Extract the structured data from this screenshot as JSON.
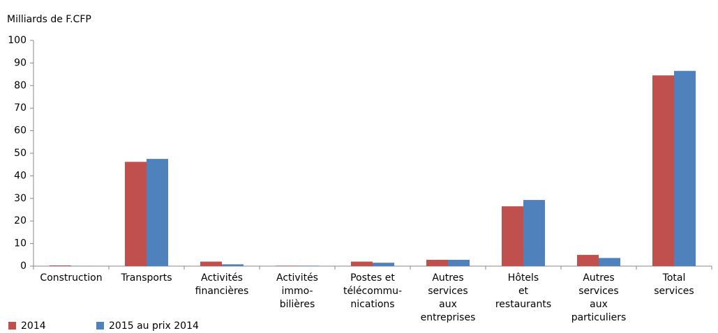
{
  "chart_data": {
    "type": "bar",
    "y_label": "Milliards de F.CFP",
    "categories": [
      "Construction",
      "Transports",
      "Activités\nfinancières",
      "Activités\nimmo-\nbilières",
      "Postes et\ntélécommu-\nnications",
      "Autres\nservices\naux\nentreprises",
      "Hôtels\net\nrestaurants",
      "Autres\nservices\naux\nparticuliers",
      "Total\nservices"
    ],
    "series": [
      {
        "name": "2014",
        "color": "#c0504d",
        "values": [
          0.3,
          46.2,
          2.0,
          0.2,
          2.0,
          2.8,
          26.5,
          5.0,
          84.5
        ]
      },
      {
        "name": "2015 au prix 2014",
        "color": "#4f81bd",
        "values": [
          0.1,
          47.5,
          0.8,
          0.2,
          1.5,
          2.8,
          29.3,
          3.6,
          86.5
        ]
      }
    ],
    "ylim": [
      0,
      100
    ],
    "yticks": [
      0,
      10,
      20,
      30,
      40,
      50,
      60,
      70,
      80,
      90,
      100
    ],
    "grid": false
  }
}
